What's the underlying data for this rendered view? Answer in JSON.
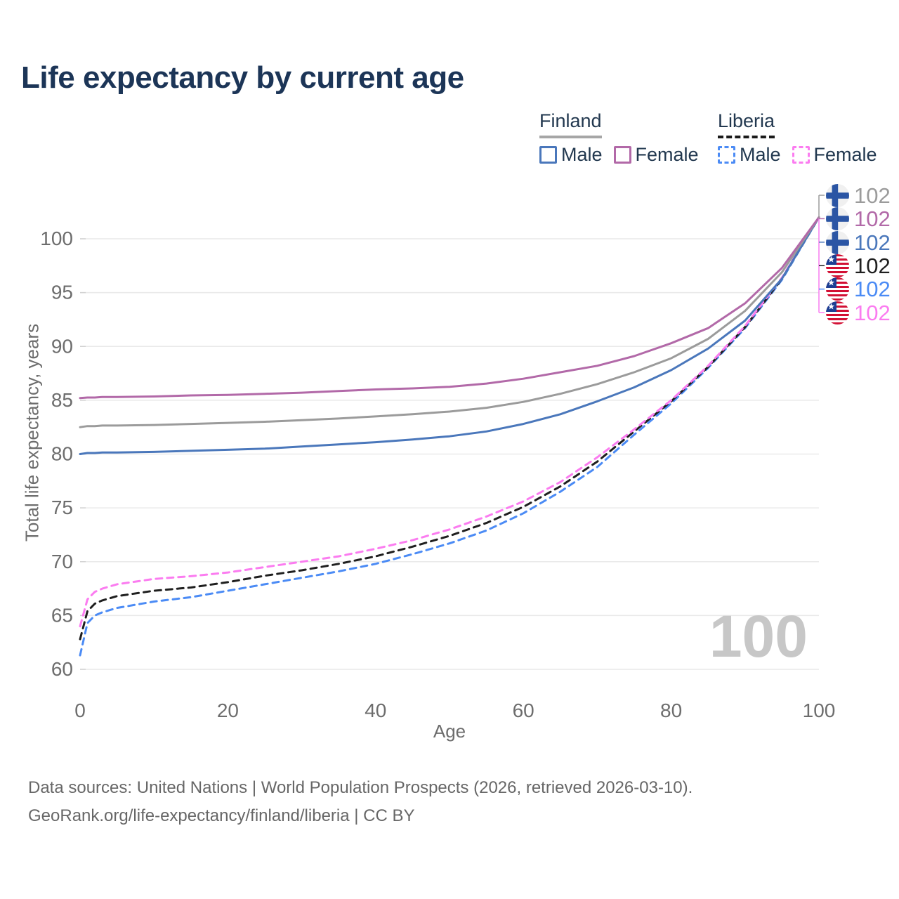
{
  "header": {
    "title": "Life expectancy by current age"
  },
  "legend": {
    "finland": {
      "label": "Finland",
      "male": "Male",
      "female": "Female"
    },
    "liberia": {
      "label": "Liberia",
      "male": "Male",
      "female": "Female"
    }
  },
  "watermark": "100",
  "end_labels": [
    {
      "series": "Finland",
      "flag": "finland",
      "value": "102",
      "color": "#9b9b9b"
    },
    {
      "series": "Finland Female",
      "flag": "finland",
      "value": "102",
      "color": "#b269a8"
    },
    {
      "series": "Finland Male",
      "flag": "finland",
      "value": "102",
      "color": "#4a77bb"
    },
    {
      "series": "Liberia",
      "flag": "liberia",
      "value": "102",
      "color": "#1f1f1f"
    },
    {
      "series": "Liberia Male",
      "flag": "liberia",
      "value": "102",
      "color": "#4b8bf5"
    },
    {
      "series": "Liberia Female",
      "flag": "liberia",
      "value": "102",
      "color": "#fb7cf0"
    }
  ],
  "footer": {
    "line1": "Data sources: United Nations | World Population Prospects (2026, retrieved 2026-03-10).",
    "line2": "GeoRank.org/life-expectancy/finland/liberia | CC BY"
  },
  "chart_data": {
    "type": "line",
    "title": "Life expectancy by current age",
    "xlabel": "Age",
    "ylabel": "Total life expectancy, years",
    "x_ticks": [
      0,
      20,
      40,
      60,
      80,
      100
    ],
    "y_ticks": [
      60,
      65,
      70,
      75,
      80,
      85,
      90,
      95,
      100
    ],
    "xlim": [
      0,
      100
    ],
    "ylim": [
      60,
      103
    ],
    "grid": "horizontal-only",
    "legend_position": "top-right",
    "current_age_indicator": 100,
    "ages": [
      0,
      1,
      2,
      3,
      5,
      10,
      15,
      20,
      25,
      30,
      35,
      40,
      45,
      50,
      55,
      60,
      65,
      70,
      75,
      80,
      85,
      90,
      95,
      100
    ],
    "series": [
      {
        "name": "Finland Female",
        "country": "Finland",
        "sex": "female",
        "style": "solid",
        "color": "#b269a8",
        "values": [
          85.2,
          85.25,
          85.25,
          85.3,
          85.3,
          85.35,
          85.45,
          85.5,
          85.6,
          85.7,
          85.85,
          86.0,
          86.1,
          86.25,
          86.55,
          87.0,
          87.6,
          88.2,
          89.1,
          90.3,
          91.7,
          94.0,
          97.3,
          102
        ]
      },
      {
        "name": "Finland",
        "country": "Finland",
        "sex": "both",
        "style": "solid",
        "color": "#9b9b9b",
        "values": [
          82.5,
          82.6,
          82.6,
          82.65,
          82.65,
          82.7,
          82.8,
          82.9,
          83.0,
          83.15,
          83.3,
          83.5,
          83.7,
          83.95,
          84.3,
          84.85,
          85.6,
          86.5,
          87.6,
          88.9,
          90.7,
          93.3,
          96.9,
          102
        ]
      },
      {
        "name": "Finland Male",
        "country": "Finland",
        "sex": "male",
        "style": "solid",
        "color": "#4a77bb",
        "values": [
          80.0,
          80.1,
          80.1,
          80.15,
          80.15,
          80.2,
          80.3,
          80.4,
          80.5,
          80.7,
          80.9,
          81.1,
          81.35,
          81.65,
          82.1,
          82.8,
          83.7,
          84.9,
          86.2,
          87.8,
          89.8,
          92.4,
          96.3,
          102
        ]
      },
      {
        "name": "Liberia Female",
        "country": "Liberia",
        "sex": "female",
        "style": "dashed",
        "color": "#fb7cf0",
        "values": [
          64.0,
          66.5,
          67.2,
          67.5,
          67.9,
          68.4,
          68.65,
          69.0,
          69.5,
          70.0,
          70.5,
          71.2,
          72.0,
          73.0,
          74.2,
          75.6,
          77.4,
          79.7,
          82.3,
          85.0,
          88.2,
          91.9,
          96.4,
          102
        ]
      },
      {
        "name": "Liberia",
        "country": "Liberia",
        "sex": "both",
        "style": "dashed",
        "color": "#1f1f1f",
        "values": [
          62.8,
          65.4,
          66.1,
          66.4,
          66.8,
          67.3,
          67.6,
          68.1,
          68.7,
          69.2,
          69.8,
          70.5,
          71.4,
          72.4,
          73.6,
          75.1,
          77.0,
          79.3,
          82.1,
          84.9,
          88.1,
          91.8,
          96.3,
          102
        ]
      },
      {
        "name": "Liberia Male",
        "country": "Liberia",
        "sex": "male",
        "style": "dashed",
        "color": "#4b8bf5",
        "values": [
          61.3,
          64.3,
          65.0,
          65.3,
          65.7,
          66.3,
          66.7,
          67.3,
          67.9,
          68.5,
          69.1,
          69.8,
          70.7,
          71.7,
          72.9,
          74.5,
          76.5,
          78.8,
          81.8,
          84.7,
          88.0,
          91.7,
          96.2,
          102
        ]
      }
    ]
  }
}
